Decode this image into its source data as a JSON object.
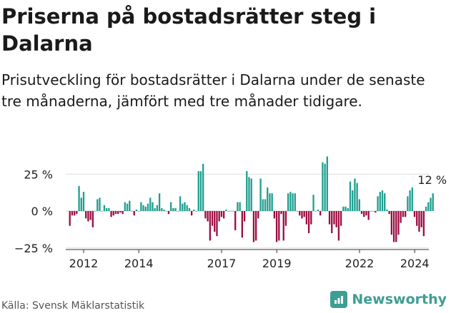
{
  "title": "Priserna på bostadsrätter steg i Dalarna",
  "subtitle": "Prisutveckling för bostadsrätter i Dalarna under de senaste tre månaderna, jämfört med tre månader tidigare.",
  "source": "Källa: Svensk Mäklarstatistik",
  "brand": "Newsworthy",
  "colors": {
    "positive": "#1f9e8f",
    "negative": "#9c0c40",
    "brand": "#3d9e94"
  },
  "chart_data": {
    "type": "bar",
    "title": "Priserna på bostadsrätter steg i Dalarna",
    "xlabel": "",
    "ylabel": "",
    "ylim": [
      -25,
      25
    ],
    "y_ticks": [
      {
        "value": 25,
        "label": "25 %"
      },
      {
        "value": 0,
        "label": "0 %"
      },
      {
        "value": -25,
        "label": "−25 %"
      }
    ],
    "x_ticks": [
      {
        "year": 2012,
        "label": "2012"
      },
      {
        "year": 2014,
        "label": "2014"
      },
      {
        "year": 2017,
        "label": "2017"
      },
      {
        "year": 2019,
        "label": "2019"
      },
      {
        "year": 2022,
        "label": "2022"
      },
      {
        "year": 2024,
        "label": "2024"
      }
    ],
    "start_year": 2011.5,
    "monthly_step": 0.0833,
    "last_value_label": "12 %",
    "values": [
      -10,
      -3,
      -3,
      -2,
      17,
      9,
      13,
      -5,
      -7,
      -6,
      -11,
      0,
      8,
      9,
      0,
      4,
      2,
      2,
      -4,
      -3,
      -2,
      -2,
      -1,
      -2,
      6,
      5,
      7,
      0,
      -3,
      1,
      0,
      6,
      4,
      3,
      5,
      9,
      6,
      2,
      4,
      12,
      2,
      1,
      0,
      -2,
      6,
      2,
      2,
      0,
      10,
      5,
      6,
      4,
      2,
      -3,
      1,
      0,
      27,
      27,
      32,
      -5,
      -7,
      -20,
      -10,
      -14,
      -17,
      -7,
      -4,
      -5,
      1,
      0,
      0,
      0,
      -13,
      6,
      6,
      -18,
      -7,
      27,
      23,
      22,
      -21,
      -20,
      -5,
      22,
      8,
      8,
      16,
      12,
      12,
      -5,
      -21,
      -20,
      -2,
      -20,
      -10,
      12,
      13,
      12,
      12,
      0,
      -3,
      -5,
      -4,
      -9,
      -15,
      -9,
      11,
      0,
      1,
      -3,
      33,
      32,
      37,
      -9,
      -15,
      -9,
      -11,
      -20,
      -10,
      3,
      3,
      2,
      20,
      14,
      22,
      19,
      8,
      -2,
      -4,
      -3,
      -6,
      0,
      0,
      -1,
      10,
      13,
      14,
      12,
      1,
      -2,
      -16,
      -21,
      -21,
      -16,
      -8,
      -4,
      -4,
      10,
      14,
      16,
      -4,
      -10,
      -14,
      -11,
      -17,
      3,
      6,
      9,
      12
    ]
  }
}
